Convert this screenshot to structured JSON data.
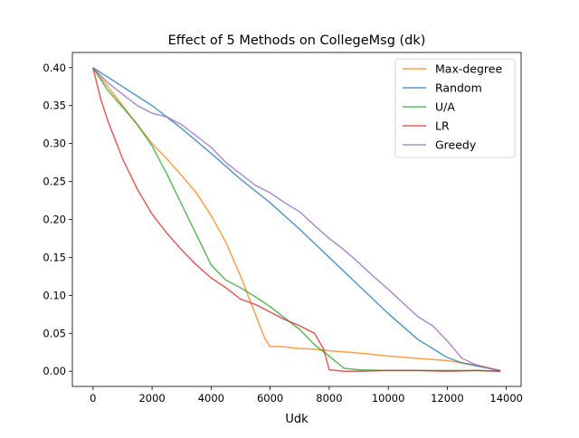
{
  "chart_data": {
    "type": "line",
    "title": "Effect of 5 Methods on CollegeMsg (dk)",
    "xlabel": "Udk",
    "ylabel": "",
    "xlim": [
      -700,
      14500
    ],
    "ylim": [
      -0.02,
      0.42
    ],
    "xticks": [
      0,
      2000,
      4000,
      6000,
      8000,
      10000,
      12000,
      14000
    ],
    "xtick_labels": [
      "0",
      "2000",
      "4000",
      "6000",
      "8000",
      "10000",
      "12000",
      "14000"
    ],
    "yticks": [
      0.0,
      0.05,
      0.1,
      0.15,
      0.2,
      0.25,
      0.3,
      0.35,
      0.4
    ],
    "ytick_labels": [
      "0.00",
      "0.05",
      "0.10",
      "0.15",
      "0.20",
      "0.25",
      "0.30",
      "0.35",
      "0.40"
    ],
    "grid": false,
    "legend_position": "top-right",
    "series": [
      {
        "name": "Max-degree",
        "color": "#ff7f0e",
        "x": [
          0,
          500,
          1000,
          1500,
          2000,
          2500,
          3000,
          3500,
          4000,
          4500,
          5000,
          5500,
          5800,
          6000,
          6200,
          6500,
          7000,
          7500,
          8000,
          9000,
          10000,
          11000,
          12000,
          13000,
          13800
        ],
        "y": [
          0.4,
          0.375,
          0.35,
          0.325,
          0.3,
          0.28,
          0.258,
          0.235,
          0.205,
          0.17,
          0.125,
          0.075,
          0.045,
          0.032,
          0.033,
          0.032,
          0.03,
          0.029,
          0.027,
          0.024,
          0.02,
          0.017,
          0.014,
          0.008,
          0.001
        ]
      },
      {
        "name": "Random",
        "color": "#1f77b4",
        "x": [
          0,
          1000,
          2000,
          3000,
          4000,
          5000,
          6000,
          7000,
          8000,
          9000,
          10000,
          11000,
          12000,
          12500,
          13000,
          13500,
          13800
        ],
        "y": [
          0.4,
          0.375,
          0.35,
          0.32,
          0.287,
          0.253,
          0.222,
          0.187,
          0.15,
          0.113,
          0.076,
          0.042,
          0.018,
          0.011,
          0.007,
          0.003,
          0.0
        ]
      },
      {
        "name": "U/A",
        "color": "#2ca02c",
        "x": [
          0,
          500,
          1000,
          1500,
          2000,
          2500,
          3000,
          3500,
          4000,
          4500,
          5000,
          5500,
          6000,
          6500,
          7000,
          7500,
          8000,
          8500,
          9000,
          10000,
          11000,
          12000,
          13000,
          13800
        ],
        "y": [
          0.4,
          0.37,
          0.348,
          0.325,
          0.297,
          0.26,
          0.22,
          0.18,
          0.14,
          0.12,
          0.11,
          0.098,
          0.085,
          0.07,
          0.055,
          0.035,
          0.02,
          0.004,
          0.002,
          0.001,
          0.001,
          0.001,
          0.001,
          0.0
        ]
      },
      {
        "name": "LR",
        "color": "#d62728",
        "x": [
          0,
          250,
          500,
          1000,
          1500,
          2000,
          2500,
          3000,
          3500,
          4000,
          4500,
          5000,
          5500,
          6000,
          6500,
          7000,
          7500,
          7800,
          8000,
          8500,
          9000,
          10000,
          11000,
          12000,
          13000,
          13800
        ],
        "y": [
          0.4,
          0.36,
          0.33,
          0.28,
          0.24,
          0.207,
          0.182,
          0.16,
          0.14,
          0.123,
          0.11,
          0.095,
          0.088,
          0.078,
          0.068,
          0.06,
          0.05,
          0.03,
          0.002,
          0.0,
          0.0,
          0.001,
          0.001,
          0.0,
          0.001,
          0.0
        ]
      },
      {
        "name": "Greedy",
        "color": "#9467bd",
        "x": [
          0,
          500,
          1000,
          1500,
          2000,
          2500,
          3000,
          3500,
          4000,
          4500,
          5000,
          5500,
          6000,
          6500,
          7000,
          7500,
          8000,
          8500,
          9000,
          9500,
          10000,
          10500,
          11000,
          11500,
          12000,
          12500,
          13000,
          13500,
          13800
        ],
        "y": [
          0.4,
          0.38,
          0.365,
          0.35,
          0.34,
          0.335,
          0.325,
          0.31,
          0.295,
          0.275,
          0.26,
          0.245,
          0.235,
          0.222,
          0.21,
          0.192,
          0.175,
          0.16,
          0.143,
          0.125,
          0.108,
          0.09,
          0.072,
          0.06,
          0.04,
          0.017,
          0.008,
          0.003,
          0.001
        ]
      }
    ]
  }
}
